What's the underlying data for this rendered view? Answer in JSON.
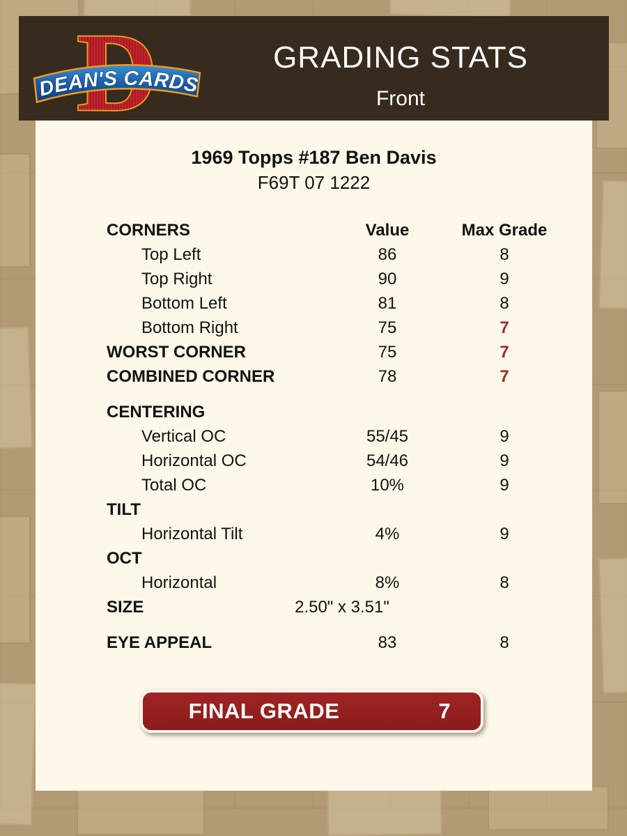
{
  "header": {
    "title": "GRADING STATS",
    "subtitle": "Front",
    "logo": {
      "letter": "D",
      "text": "DEAN'S CARDS"
    }
  },
  "card": {
    "title": "1969 Topps #187 Ben Davis",
    "serial": "F69T 07 1222"
  },
  "table": {
    "rows": [
      {
        "label": "CORNERS",
        "value": "Value",
        "max": "Max Grade",
        "bold": true,
        "header": true
      },
      {
        "label": "Top Left",
        "indent": true,
        "value": "86",
        "max": "8"
      },
      {
        "label": "Top Right",
        "indent": true,
        "value": "90",
        "max": "9"
      },
      {
        "label": "Bottom Left",
        "indent": true,
        "value": "81",
        "max": "8"
      },
      {
        "label": "Bottom Right",
        "indent": true,
        "value": "75",
        "max": "7",
        "max_red": true
      },
      {
        "label": "WORST CORNER",
        "bold": true,
        "value": "75",
        "max": "7",
        "max_red": true
      },
      {
        "label": "COMBINED CORNER",
        "bold": true,
        "value": "78",
        "max": "7",
        "max_red": true
      },
      {
        "label": "CENTERING",
        "bold": true,
        "gap": true,
        "value": "",
        "max": ""
      },
      {
        "label": "Vertical OC",
        "indent": true,
        "value": "55/45",
        "max": "9"
      },
      {
        "label": "Horizontal OC",
        "indent": true,
        "value": "54/46",
        "max": "9"
      },
      {
        "label": "Total OC",
        "indent": true,
        "value": "10%",
        "max": "9"
      },
      {
        "label": "TILT",
        "bold": true,
        "value": "",
        "max": ""
      },
      {
        "label": "Horizontal Tilt",
        "indent": true,
        "value": "4%",
        "max": "9"
      },
      {
        "label": "OCT",
        "bold": true,
        "value": "",
        "max": ""
      },
      {
        "label": "Horizontal",
        "indent": true,
        "value": "8%",
        "max": "8"
      },
      {
        "label": "SIZE",
        "bold": true,
        "value": "2.50\" x 3.51\"",
        "max": "",
        "size_row": true
      },
      {
        "label": "EYE APPEAL",
        "bold": true,
        "gap": true,
        "value": "83",
        "max": "8"
      }
    ]
  },
  "final": {
    "label": "FINAL GRADE",
    "grade": "7"
  },
  "colors": {
    "background_tan": "#b29a73",
    "panel_cream": "#fdf8e9",
    "header_brown": "#362b1e",
    "accent_red": "#9e2424",
    "alert_red": "#9a2d2d",
    "logo_red": "#c5242e",
    "logo_blue": "#1b63ab",
    "logo_orange": "#f09a1b",
    "text_black": "#121212",
    "white": "#ffffff"
  }
}
